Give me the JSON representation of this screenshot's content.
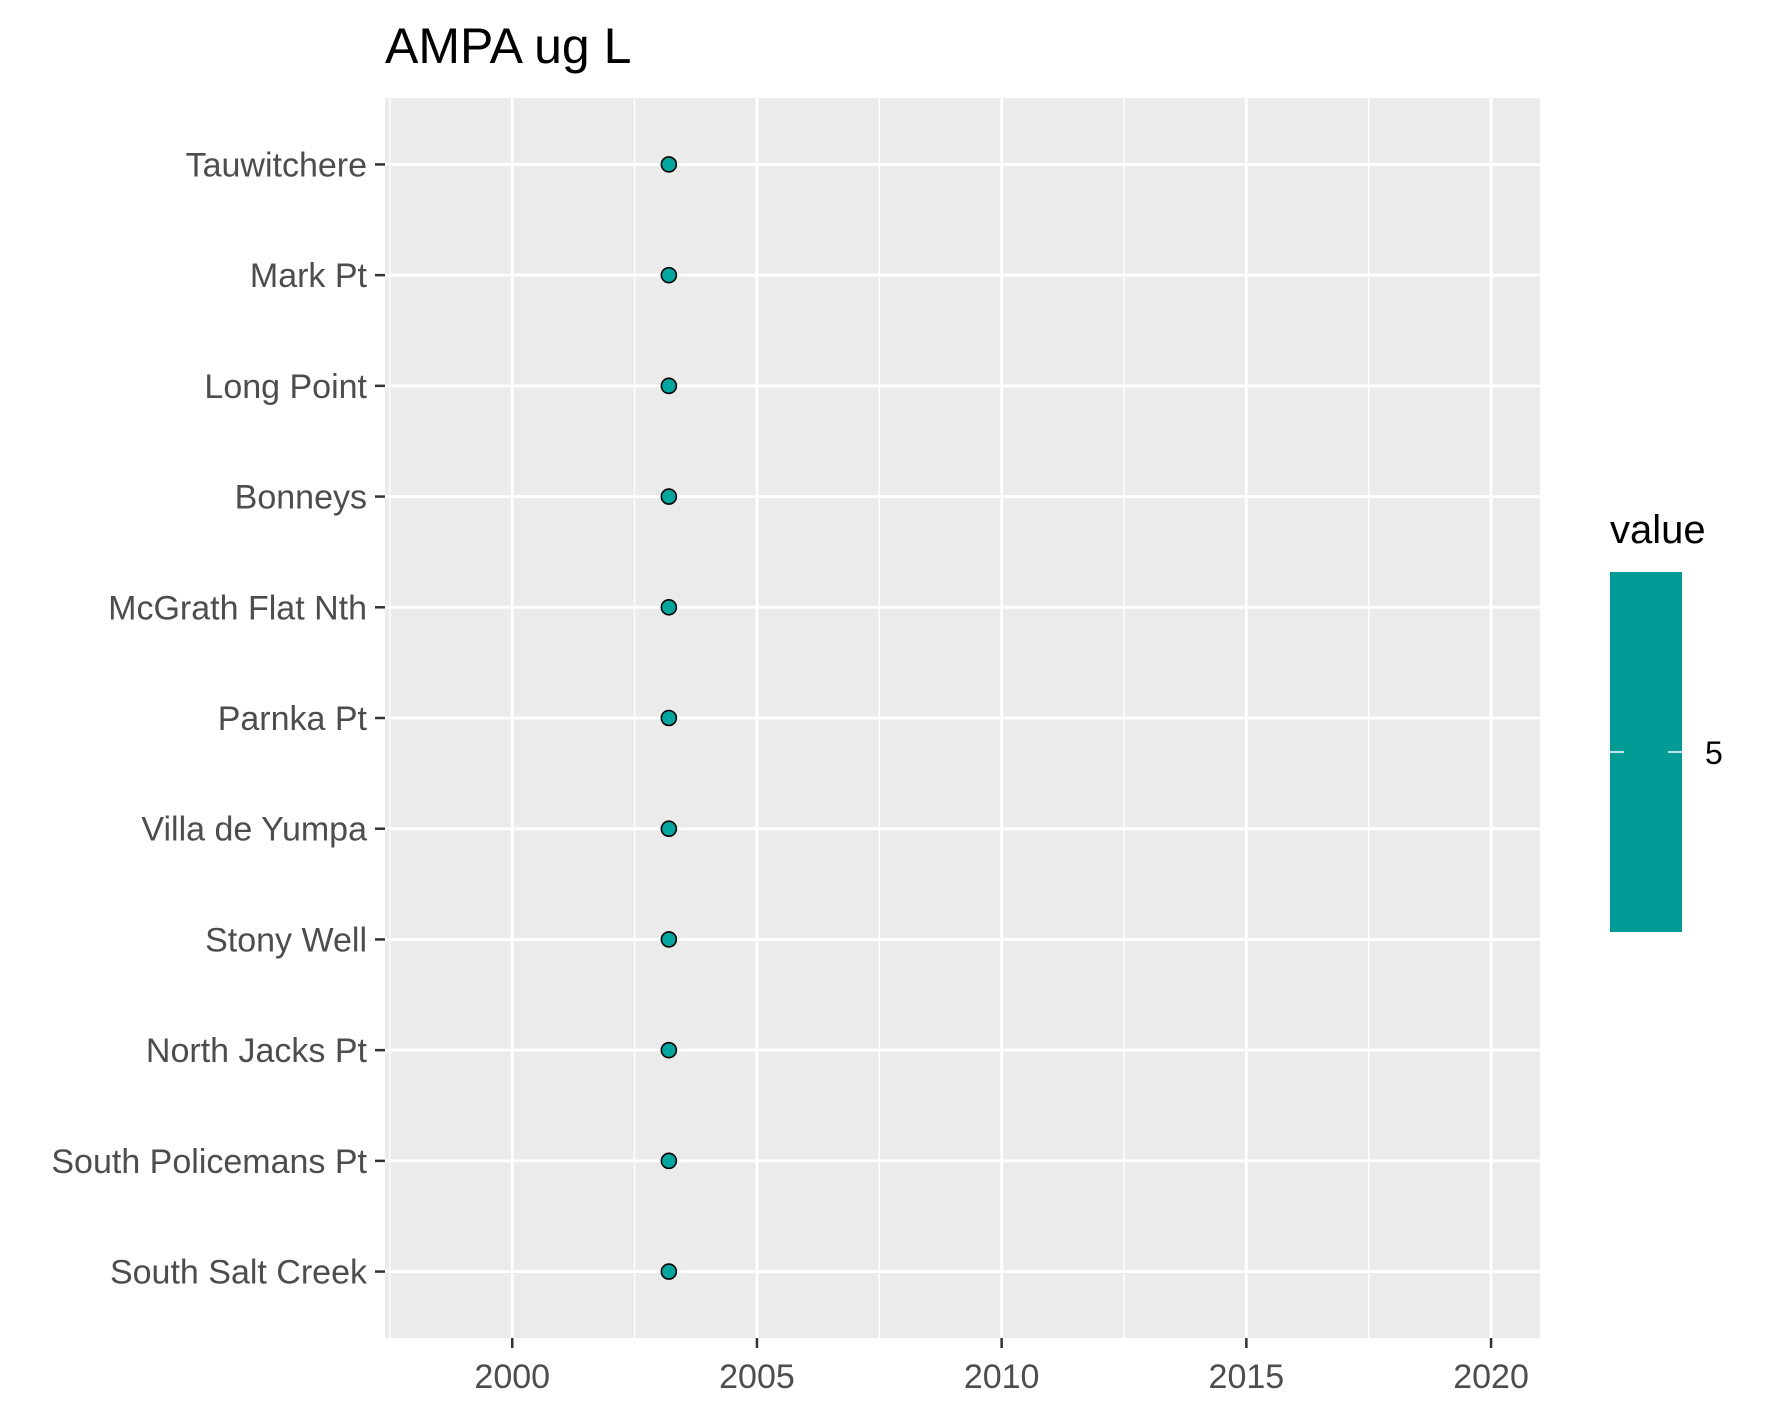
{
  "chart_data": {
    "type": "scatter",
    "title": "AMPA ug L",
    "xlabel": "",
    "ylabel": "",
    "xlim": [
      1997.4,
      2021.0
    ],
    "x_ticks": [
      "2000",
      "2005",
      "2010",
      "2015",
      "2020"
    ],
    "x_tick_values": [
      2000,
      2005,
      2010,
      2015,
      2020
    ],
    "categories": [
      "Tauwitchere",
      "Mark Pt",
      "Long Point",
      "Bonneys",
      "McGrath Flat Nth",
      "Parnka Pt",
      "Villa de Yumpa",
      "Stony Well",
      "North Jacks Pt",
      "South Policemans Pt",
      "South Salt Creek"
    ],
    "points": [
      {
        "site": "Tauwitchere",
        "x": 2003.2,
        "value": 5
      },
      {
        "site": "Mark Pt",
        "x": 2003.2,
        "value": 5
      },
      {
        "site": "Long Point",
        "x": 2003.2,
        "value": 5
      },
      {
        "site": "Bonneys",
        "x": 2003.2,
        "value": 5
      },
      {
        "site": "McGrath Flat Nth",
        "x": 2003.2,
        "value": 5
      },
      {
        "site": "Parnka Pt",
        "x": 2003.2,
        "value": 5
      },
      {
        "site": "Villa de Yumpa",
        "x": 2003.2,
        "value": 5
      },
      {
        "site": "Stony Well",
        "x": 2003.2,
        "value": 5
      },
      {
        "site": "North Jacks Pt",
        "x": 2003.2,
        "value": 5
      },
      {
        "site": "South Policemans Pt",
        "x": 2003.2,
        "value": 5
      },
      {
        "site": "South Salt Creek",
        "x": 2003.2,
        "value": 5
      }
    ],
    "grid": true,
    "legend": {
      "title": "value",
      "placement": "right",
      "labels": [
        "5"
      ],
      "color": "#009B94"
    },
    "colors": {
      "panel_background": "#EBEBEB",
      "grid_line": "#FFFFFF",
      "point_fill": "#00A79E",
      "point_stroke": "#000000"
    }
  }
}
